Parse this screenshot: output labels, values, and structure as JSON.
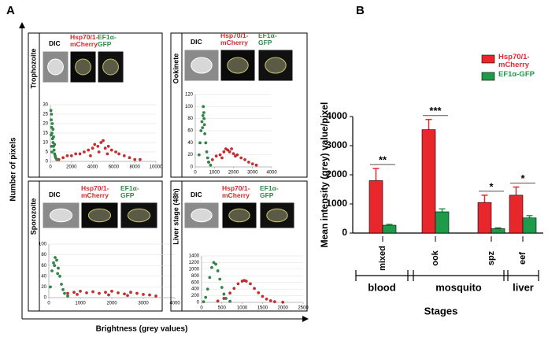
{
  "figure": {
    "panel_labels": [
      "A",
      "B"
    ],
    "ylabel": "Number of pixels",
    "xlabel": "Brightness (grey values)"
  },
  "chart_data": [
    {
      "type": "scatter",
      "title": "Trophozoite",
      "image_labels": [
        "DIC",
        "Hsp70/1-\nmCherry",
        "EF1α-\nGFP"
      ],
      "xlim": [
        0,
        10000
      ],
      "xticks": [
        0,
        2000,
        4000,
        6000,
        8000,
        10000
      ],
      "ylim": [
        0,
        30
      ],
      "yticks": [
        0,
        5,
        10,
        15,
        20,
        25,
        30
      ],
      "series": [
        {
          "color": "#2e8b46",
          "x": [
            50,
            80,
            100,
            120,
            150,
            180,
            200,
            250,
            300,
            350,
            400,
            450,
            500,
            600,
            150,
            100,
            70,
            250,
            300,
            400
          ],
          "values": [
            27,
            22,
            25,
            18,
            15,
            20,
            12,
            10,
            8,
            6,
            4,
            3,
            2,
            1,
            5,
            8,
            14,
            17,
            13,
            9
          ]
        },
        {
          "color": "#d42a2a",
          "x": [
            800,
            1200,
            1600,
            2000,
            2400,
            2800,
            3200,
            3600,
            4000,
            4200,
            4500,
            4800,
            5000,
            5200,
            5500,
            5800,
            6200,
            6500,
            7000,
            7500,
            8000,
            8500,
            3800,
            4600,
            5400
          ],
          "values": [
            1,
            2,
            3,
            3,
            4,
            4,
            5,
            6,
            7,
            9,
            8,
            10,
            11,
            7,
            8,
            6,
            5,
            4,
            3,
            2,
            1,
            1,
            3,
            5,
            4
          ]
        }
      ]
    },
    {
      "type": "scatter",
      "title": "Ookinete",
      "image_labels": [
        "DIC",
        "Hsp70/1-\nmCherry",
        "EF1α-\nGFP"
      ],
      "xlim": [
        0,
        4000
      ],
      "xticks": [
        0,
        1000,
        2000,
        3000,
        4000
      ],
      "ylim": [
        0,
        120
      ],
      "yticks": [
        0,
        20,
        40,
        60,
        80,
        100,
        120
      ],
      "series": [
        {
          "color": "#2e8b46",
          "x": [
            200,
            250,
            300,
            350,
            400,
            420,
            450,
            480,
            500,
            550,
            600,
            650,
            700,
            800,
            380,
            460
          ],
          "values": [
            20,
            40,
            60,
            75,
            85,
            100,
            90,
            70,
            55,
            40,
            25,
            15,
            8,
            3,
            65,
            80
          ]
        },
        {
          "color": "#d42a2a",
          "x": [
            700,
            900,
            1100,
            1300,
            1500,
            1600,
            1700,
            1800,
            1900,
            2000,
            2200,
            2400,
            2600,
            2800,
            3000,
            3200,
            1400,
            2100
          ],
          "values": [
            8,
            12,
            18,
            20,
            25,
            30,
            28,
            25,
            30,
            22,
            20,
            15,
            12,
            8,
            5,
            3,
            15,
            18
          ]
        }
      ]
    },
    {
      "type": "scatter",
      "title": "Sporozoite",
      "image_labels": [
        "DIC",
        "Hsp70/1-\nmCherry",
        "EF1α-\nGFP"
      ],
      "xlim": [
        0,
        4000
      ],
      "xticks": [
        0,
        1000,
        2000,
        3000,
        4000
      ],
      "ylim": [
        0,
        100
      ],
      "yticks": [
        0,
        20,
        40,
        60,
        80,
        100
      ],
      "series": [
        {
          "color": "#2e8b46",
          "x": [
            50,
            100,
            150,
            200,
            250,
            300,
            350,
            400,
            450,
            500,
            600,
            180,
            280
          ],
          "values": [
            20,
            50,
            65,
            75,
            70,
            55,
            40,
            25,
            15,
            8,
            3,
            60,
            45
          ]
        },
        {
          "color": "#d42a2a",
          "x": [
            600,
            800,
            1000,
            1200,
            1400,
            1600,
            1800,
            2000,
            2200,
            2400,
            2600,
            2800,
            3000,
            3200,
            3400,
            900,
            1900,
            2500
          ],
          "values": [
            8,
            10,
            12,
            9,
            11,
            8,
            10,
            12,
            9,
            7,
            10,
            8,
            6,
            5,
            3,
            6,
            5,
            4
          ]
        }
      ]
    },
    {
      "type": "scatter",
      "title": "Liver stage (48h)",
      "image_labels": [
        "DIC",
        "Hsp70/1-\nmCherry",
        "EF1α-\nGFP"
      ],
      "xlim": [
        0,
        2500
      ],
      "xticks": [
        0,
        500,
        1000,
        1500,
        2000,
        2500
      ],
      "ylim": [
        0,
        1400
      ],
      "yticks": [
        0,
        200,
        400,
        600,
        800,
        1000,
        1200,
        1400
      ],
      "series": [
        {
          "color": "#2e8b46",
          "x": [
            50,
            100,
            150,
            200,
            250,
            300,
            350,
            400,
            450,
            500,
            550,
            600,
            700
          ],
          "values": [
            20,
            150,
            400,
            750,
            1050,
            1200,
            1150,
            950,
            700,
            450,
            250,
            120,
            30
          ]
        },
        {
          "color": "#d42a2a",
          "x": [
            400,
            550,
            700,
            800,
            900,
            1000,
            1050,
            1100,
            1200,
            1300,
            1400,
            1500,
            1600,
            1700,
            1800,
            2000
          ],
          "values": [
            40,
            120,
            280,
            420,
            560,
            640,
            660,
            640,
            560,
            420,
            290,
            180,
            100,
            50,
            20,
            5
          ]
        }
      ]
    },
    {
      "type": "bar",
      "ylabel": "Mean intensity (grey) value/pixel",
      "xlabel": "Stages",
      "categories": [
        "mixed",
        "ook",
        "spz",
        "eef"
      ],
      "groups": [
        "blood",
        "mosquito",
        "liver"
      ],
      "significance": [
        "**",
        "***",
        "*",
        "*"
      ],
      "ylim": [
        0,
        4000
      ],
      "yticks": [
        0,
        1000,
        2000,
        3000,
        4000
      ],
      "series": [
        {
          "name": "Hsp70/1-\nmCherry",
          "color": "#e8272d",
          "values": [
            1800,
            3550,
            1050,
            1300
          ],
          "errors": [
            420,
            350,
            250,
            280
          ]
        },
        {
          "name": "EF1α-GFP",
          "color": "#1f9a4a",
          "values": [
            270,
            730,
            150,
            520
          ],
          "errors": [
            30,
            100,
            30,
            80
          ]
        }
      ]
    }
  ]
}
